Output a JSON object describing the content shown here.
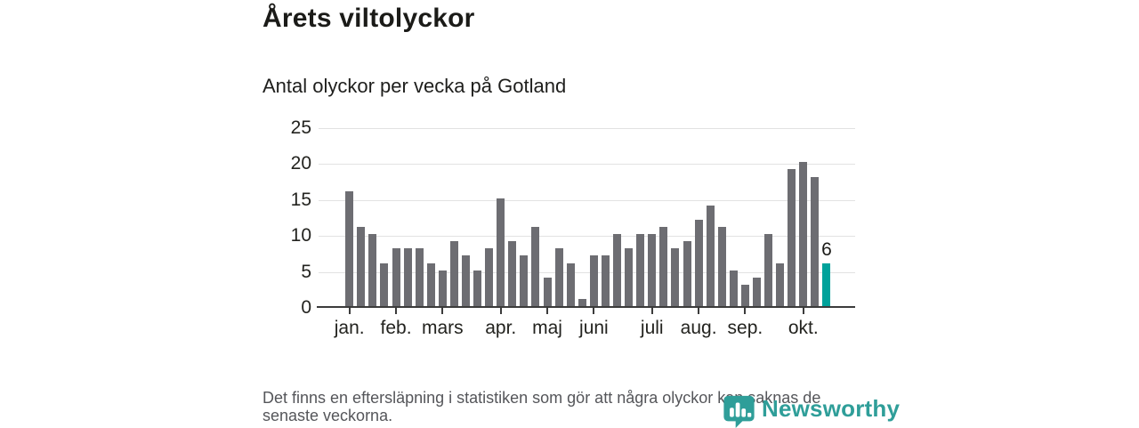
{
  "title": "Årets viltolyckor",
  "subtitle": "Antal olyckor per vecka på Gotland",
  "footer": {
    "line1": "Det finns en eftersläpning i statistiken som gör att några olyckor kan saknas de",
    "line2": "senaste veckorna."
  },
  "logo": {
    "text": "Newsworthy"
  },
  "colors": {
    "bar": "#6d6d72",
    "highlight": "#00a29b",
    "grid": "#e2e2e2",
    "axis": "#3b3b3b",
    "logo": "#2f9e99"
  },
  "chart_data": {
    "type": "bar",
    "title": "Årets viltolyckor",
    "subtitle": "Antal olyckor per vecka på Gotland",
    "x_unit": "vecka (week)",
    "ylabel": "Antal olyckor",
    "ylim": [
      0,
      25
    ],
    "y_ticks": [
      0,
      5,
      10,
      15,
      20,
      25
    ],
    "grid": "horizontal",
    "values": [
      16,
      11,
      10,
      6,
      8,
      8,
      8,
      6,
      5,
      9,
      7,
      5,
      8,
      15,
      9,
      7,
      11,
      4,
      8,
      6,
      1,
      7,
      7,
      10,
      8,
      10,
      10,
      11,
      8,
      9,
      12,
      14,
      11,
      5,
      3,
      4,
      10,
      6,
      19,
      20,
      18,
      6
    ],
    "highlight_last": true,
    "last_value_label": "6",
    "months": [
      {
        "label": "jan.",
        "index": 0
      },
      {
        "label": "feb.",
        "index": 4
      },
      {
        "label": "mars",
        "index": 8
      },
      {
        "label": "apr.",
        "index": 13
      },
      {
        "label": "maj",
        "index": 17
      },
      {
        "label": "juni",
        "index": 21
      },
      {
        "label": "juli",
        "index": 26
      },
      {
        "label": "aug.",
        "index": 30
      },
      {
        "label": "sep.",
        "index": 34
      },
      {
        "label": "okt.",
        "index": 39
      }
    ]
  }
}
